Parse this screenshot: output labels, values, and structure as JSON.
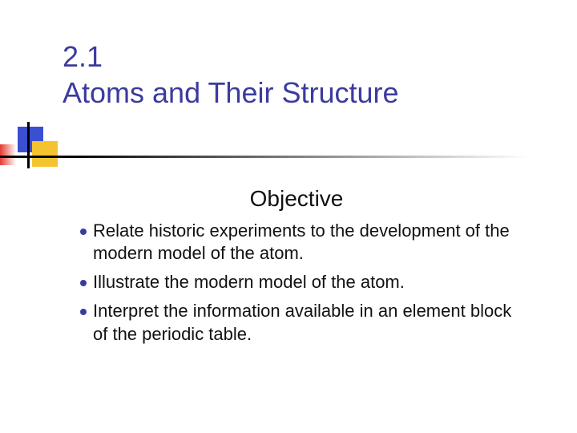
{
  "title": {
    "line1": "2.1",
    "line2": "Atoms and Their Structure",
    "color": "#3b3b9e",
    "fontsize": 36
  },
  "decoration": {
    "blue": "#3b4fd1",
    "yellow": "#f4c430",
    "red_gradient_from": "#e43a2f",
    "red_gradient_to": "#ffffff",
    "hline_from": "#000000",
    "hline_to": "#ffffff",
    "vline_color": "#000000"
  },
  "content": {
    "heading": "Objective",
    "heading_color": "#111111",
    "heading_fontsize": 28,
    "bullet_color": "#3b3b9e",
    "text_color": "#111111",
    "body_fontsize": 22,
    "items": [
      "Relate historic experiments to the development of the modern model of the atom.",
      "Illustrate the modern model of the atom.",
      "Interpret the information available in an element block of the periodic table."
    ]
  },
  "background_color": "#ffffff"
}
